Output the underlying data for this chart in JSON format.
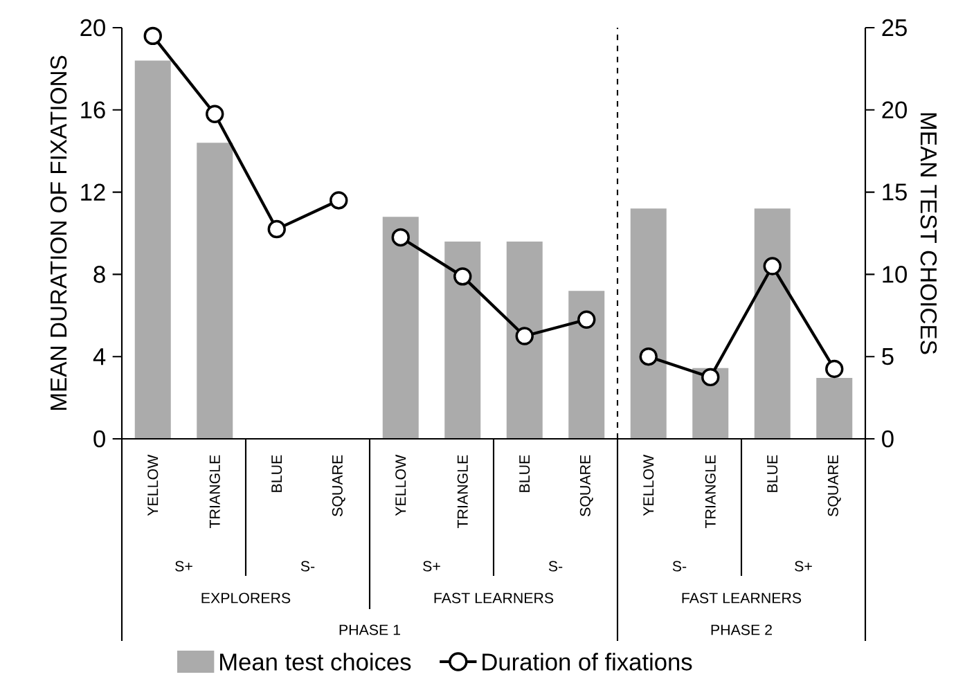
{
  "chart_data": {
    "type": "bar",
    "ylabel": "MEAN DURATION OF FIXATIONS",
    "y2label": "MEAN TEST CHOICES",
    "categories": [
      "YELLOW",
      "TRIANGLE",
      "BLUE",
      "SQUARE",
      "YELLOW",
      "TRIANGLE",
      "BLUE",
      "SQUARE",
      "YELLOW",
      "TRIANGLE",
      "BLUE",
      "SQUARE"
    ],
    "series": [
      {
        "name": "Mean test choices",
        "axis": "y2",
        "color": "#ababab",
        "values": [
          23,
          18,
          0,
          0,
          13.5,
          12,
          12,
          9,
          14,
          4.3,
          14,
          3.7
        ]
      },
      {
        "name": "Duration of fixations",
        "type": "line",
        "color": "#000000",
        "values": [
          19.6,
          15.8,
          10.2,
          11.6,
          null,
          null,
          null,
          null,
          null,
          null,
          null,
          null
        ]
      },
      {
        "type": "line",
        "color": "#000000",
        "values": [
          null,
          null,
          null,
          null,
          9.8,
          7.9,
          5.0,
          5.8,
          null,
          null,
          null,
          null
        ]
      },
      {
        "type": "line",
        "color": "#000000",
        "values": [
          null,
          null,
          null,
          null,
          null,
          null,
          null,
          null,
          4.0,
          3.0,
          8.4,
          3.4
        ]
      }
    ],
    "ylim": [
      0,
      20
    ],
    "yticks": [
      0,
      4,
      8,
      12,
      16,
      20
    ],
    "y2lim": [
      0,
      25
    ],
    "y2ticks": [
      0,
      5,
      10,
      15,
      20,
      25
    ],
    "marker": "circle",
    "legend": "bottom",
    "annotations": [
      "S+",
      "S-",
      "S+",
      "S-",
      "S-",
      "S+",
      "EXPLORERS",
      "FAST LEARNERS",
      "FAST LEARNERS",
      "PHASE 1",
      "PHASE 2"
    ]
  }
}
